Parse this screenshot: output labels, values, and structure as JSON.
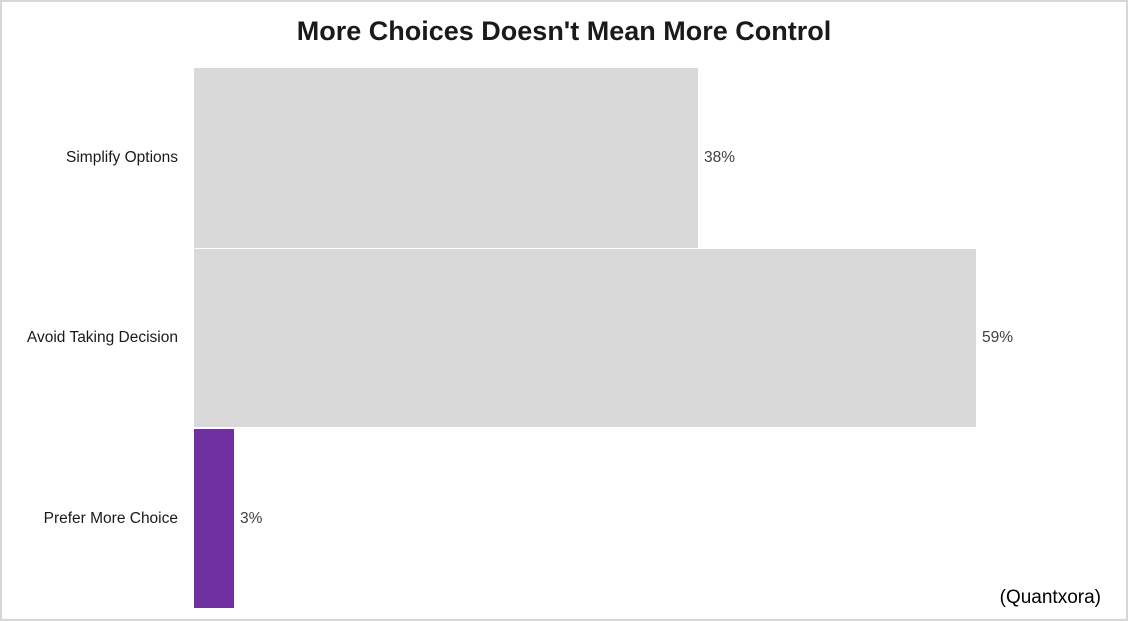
{
  "chart_data": {
    "type": "bar",
    "orientation": "horizontal",
    "title": "More Choices Doesn't Mean More Control",
    "categories": [
      "Simplify Options",
      "Avoid Taking Decision",
      "Prefer More Choice"
    ],
    "values": [
      38,
      59,
      3
    ],
    "value_labels": [
      "38%",
      "59%",
      "3%"
    ],
    "bar_colors": [
      "#D9D9D9",
      "#D9D9D9",
      "#7030A0"
    ],
    "source": "(Quantxora)",
    "xlim": [
      0,
      70
    ],
    "grid": false,
    "legend": false,
    "axes_visible": false,
    "colors": {
      "bar_default": "#D9D9D9",
      "bar_accent": "#7030A0",
      "value_label_text": "#404040",
      "category_label_text": "#1A1A1A",
      "title_text": "#1A1A1A",
      "background": "#FFFFFF",
      "frame_border": "#D7D7D7"
    }
  }
}
